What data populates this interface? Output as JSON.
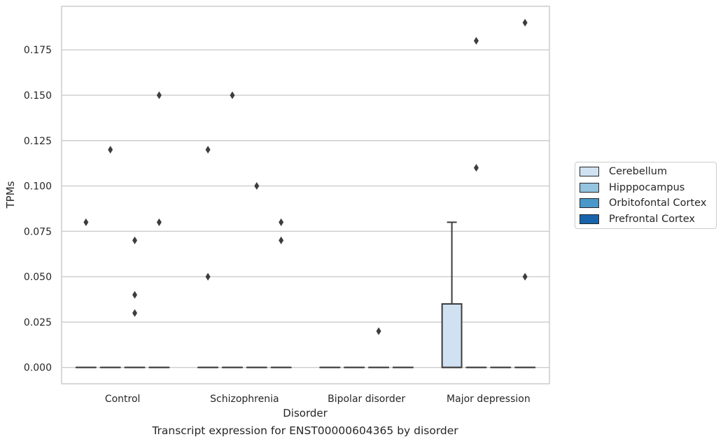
{
  "caption": "Transcript expression for ENST00000604365 by disorder",
  "chart_data": {
    "type": "box",
    "title": "",
    "xlabel": "Disorder",
    "ylabel": "TPMs",
    "categories": [
      "Control",
      "Schizophrenia",
      "Bipolar disorder",
      "Major depression"
    ],
    "ylim": [
      -0.009,
      0.199
    ],
    "yticks": [
      0.0,
      0.025,
      0.05,
      0.075,
      0.1,
      0.125,
      0.15,
      0.175
    ],
    "ytick_labels": [
      "0.000",
      "0.025",
      "0.050",
      "0.075",
      "0.100",
      "0.125",
      "0.150",
      "0.175"
    ],
    "grid": true,
    "legend_position": "right",
    "series": [
      {
        "name": "Cerebellum",
        "color": "#d0e1f2"
      },
      {
        "name": "Hipppocampus",
        "color": "#94c4df"
      },
      {
        "name": "Orbitofontal Cortex",
        "color": "#4a98c9"
      },
      {
        "name": "Prefrontal Cortex",
        "color": "#1764ab"
      }
    ],
    "boxes": [
      {
        "category": "Control",
        "series": "Cerebellum",
        "min": 0,
        "q1": 0,
        "median": 0,
        "q3": 0,
        "max": 0,
        "outliers": [
          0.08
        ]
      },
      {
        "category": "Control",
        "series": "Hipppocampus",
        "min": 0,
        "q1": 0,
        "median": 0,
        "q3": 0,
        "max": 0,
        "outliers": [
          0.12
        ]
      },
      {
        "category": "Control",
        "series": "Orbitofontal Cortex",
        "min": 0,
        "q1": 0,
        "median": 0,
        "q3": 0,
        "max": 0,
        "outliers": [
          0.07,
          0.04,
          0.03
        ]
      },
      {
        "category": "Control",
        "series": "Prefrontal Cortex",
        "min": 0,
        "q1": 0,
        "median": 0,
        "q3": 0,
        "max": 0,
        "outliers": [
          0.15,
          0.08
        ]
      },
      {
        "category": "Schizophrenia",
        "series": "Cerebellum",
        "min": 0,
        "q1": 0,
        "median": 0,
        "q3": 0,
        "max": 0,
        "outliers": [
          0.12,
          0.05
        ]
      },
      {
        "category": "Schizophrenia",
        "series": "Hipppocampus",
        "min": 0,
        "q1": 0,
        "median": 0,
        "q3": 0,
        "max": 0,
        "outliers": [
          0.15
        ]
      },
      {
        "category": "Schizophrenia",
        "series": "Orbitofontal Cortex",
        "min": 0,
        "q1": 0,
        "median": 0,
        "q3": 0,
        "max": 0,
        "outliers": [
          0.1
        ]
      },
      {
        "category": "Schizophrenia",
        "series": "Prefrontal Cortex",
        "min": 0,
        "q1": 0,
        "median": 0,
        "q3": 0,
        "max": 0,
        "outliers": [
          0.08,
          0.07
        ]
      },
      {
        "category": "Bipolar disorder",
        "series": "Cerebellum",
        "min": 0,
        "q1": 0,
        "median": 0,
        "q3": 0,
        "max": 0,
        "outliers": []
      },
      {
        "category": "Bipolar disorder",
        "series": "Hipppocampus",
        "min": 0,
        "q1": 0,
        "median": 0,
        "q3": 0,
        "max": 0,
        "outliers": []
      },
      {
        "category": "Bipolar disorder",
        "series": "Orbitofontal Cortex",
        "min": 0,
        "q1": 0,
        "median": 0,
        "q3": 0,
        "max": 0,
        "outliers": [
          0.02
        ]
      },
      {
        "category": "Bipolar disorder",
        "series": "Prefrontal Cortex",
        "min": 0,
        "q1": 0,
        "median": 0,
        "q3": 0,
        "max": 0,
        "outliers": []
      },
      {
        "category": "Major depression",
        "series": "Cerebellum",
        "min": 0,
        "q1": 0,
        "median": 0,
        "q3": 0.035,
        "max": 0.08,
        "outliers": []
      },
      {
        "category": "Major depression",
        "series": "Hipppocampus",
        "min": 0,
        "q1": 0,
        "median": 0,
        "q3": 0,
        "max": 0,
        "outliers": [
          0.18,
          0.11
        ]
      },
      {
        "category": "Major depression",
        "series": "Orbitofontal Cortex",
        "min": 0,
        "q1": 0,
        "median": 0,
        "q3": 0,
        "max": 0,
        "outliers": []
      },
      {
        "category": "Major depression",
        "series": "Prefrontal Cortex",
        "min": 0,
        "q1": 0,
        "median": 0,
        "q3": 0,
        "max": 0,
        "outliers": [
          0.19,
          0.05
        ]
      }
    ]
  }
}
